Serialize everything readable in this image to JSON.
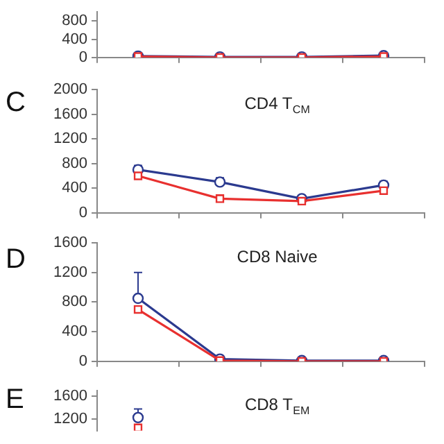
{
  "chart_data": [
    {
      "type": "line",
      "categories": [
        null,
        null,
        null,
        null
      ],
      "ylim": [
        0,
        1000
      ],
      "yticks": [
        0,
        400,
        800
      ],
      "grid": false,
      "legend": false,
      "tick_labels": "y",
      "series": [
        {
          "color": "#2b3a8f",
          "marker": "circle",
          "values": [
            30,
            10,
            10,
            40
          ]
        },
        {
          "color": "#e8302f",
          "marker": "square",
          "values": [
            20,
            0,
            0,
            20
          ]
        }
      ]
    },
    {
      "type": "line",
      "title": "CD4 T$_{CM}$",
      "annotations": [
        "C"
      ],
      "categories": [
        null,
        null,
        null,
        null
      ],
      "ylim": [
        0,
        2000
      ],
      "yticks": [
        0,
        400,
        800,
        1200,
        1600,
        2000
      ],
      "grid": false,
      "legend": false,
      "tick_labels": "y",
      "series": [
        {
          "color": "#2b3a8f",
          "marker": "circle",
          "values": [
            700,
            500,
            230,
            450
          ],
          "errors": [
            [
              700,
              770
            ],
            [
              500,
              570
            ],
            [
              230,
              280
            ],
            [
              450,
              510
            ]
          ]
        },
        {
          "color": "#e8302f",
          "marker": "square",
          "values": [
            600,
            230,
            190,
            360
          ],
          "errors": [
            [
              600,
              640
            ],
            [
              230,
              290
            ],
            [
              190,
              230
            ],
            [
              360,
              390
            ]
          ]
        }
      ]
    },
    {
      "type": "line",
      "title": "CD8 Naive",
      "annotations": [
        "D"
      ],
      "categories": [
        null,
        null,
        null,
        null
      ],
      "ylim": [
        0,
        1600
      ],
      "yticks": [
        0,
        400,
        800,
        1200,
        1600
      ],
      "grid": false,
      "legend": false,
      "tick_labels": "y",
      "series": [
        {
          "color": "#2b3a8f",
          "marker": "circle",
          "values": [
            850,
            30,
            10,
            10
          ],
          "errors": [
            [
              850,
              1200
            ],
            null,
            null,
            null
          ]
        },
        {
          "color": "#e8302f",
          "marker": "square",
          "values": [
            700,
            10,
            0,
            0
          ]
        }
      ]
    },
    {
      "type": "line",
      "title": "CD8 T$_{EM}$",
      "annotations": [
        "E"
      ],
      "categories": [
        null,
        null,
        null,
        null
      ],
      "ylim": [
        1000,
        1700
      ],
      "yticks": [
        1200,
        1600
      ],
      "grid": false,
      "legend": false,
      "tick_labels": "y",
      "series": [
        {
          "color": "#2b3a8f",
          "marker": "circle",
          "values": [
            1230,
            null,
            null,
            null
          ],
          "errors": [
            [
              1230,
              1380
            ],
            null,
            null,
            null
          ]
        },
        {
          "color": "#e8302f",
          "marker": "square",
          "values": [
            1050,
            null,
            null,
            null
          ],
          "errors": [
            [
              1050,
              1100
            ],
            null,
            null,
            null
          ]
        }
      ]
    }
  ]
}
